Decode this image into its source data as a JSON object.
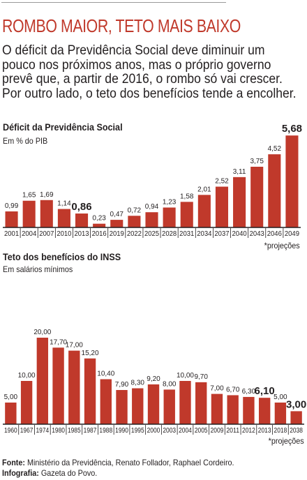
{
  "headline": "ROMBO MAIOR, TETO MAIS BAIXO",
  "intro": "O déficit da Previdência Social deve diminuir um pouco nos próximos anos, mas o próprio governo prevê que, a partir de 2016, o rombo só vai crescer. Por outro lado, o teto dos benefícios tende a encolher.",
  "colors": {
    "bar": "#c0392b",
    "headline": "#c0392b",
    "axis": "#231f20"
  },
  "chart_data": [
    {
      "type": "bar",
      "title": "Déficit da Previdência Social",
      "subtitle": "Em % do PIB",
      "note": "*projeções",
      "categories": [
        "2001",
        "2004",
        "2007",
        "2010",
        "2013",
        "2016",
        "2019",
        "2022",
        "2025",
        "2028",
        "2031",
        "2034",
        "2037",
        "2040",
        "2043",
        "2046",
        "2049"
      ],
      "values": [
        0.99,
        1.65,
        1.69,
        1.14,
        0.86,
        0.23,
        0.47,
        0.72,
        0.94,
        1.23,
        1.58,
        2.01,
        2.52,
        3.11,
        3.75,
        4.52,
        5.68
      ],
      "labels": [
        "0,99",
        "1,65",
        "1,69",
        "1,14",
        "0,86",
        "0,23",
        "0,47",
        "0,72",
        "0,94",
        "1,23",
        "1,58",
        "2,01",
        "2,52",
        "3,11",
        "3,75",
        "4,52",
        "5,68"
      ],
      "highlighted": [
        "2013",
        "2049"
      ]
    },
    {
      "type": "bar",
      "title": "Teto dos benefícios do INSS",
      "subtitle": "Em salários mínimos",
      "note": "*projeções",
      "categories": [
        "1960",
        "1967",
        "1974",
        "1980",
        "1985",
        "1987",
        "1988",
        "1990",
        "1995",
        "2000",
        "2003",
        "2004",
        "2005",
        "2009",
        "2011",
        "2012",
        "2013",
        "2018",
        "2038"
      ],
      "values": [
        5.0,
        10.0,
        20.0,
        17.7,
        17.0,
        15.2,
        10.4,
        7.9,
        8.3,
        9.2,
        8.0,
        10.0,
        9.7,
        7.0,
        6.7,
        6.3,
        6.1,
        5.0,
        3.0
      ],
      "labels": [
        "5,00",
        "10,00",
        "20,00",
        "17,70",
        "17,00",
        "15,20",
        "10,40",
        "7,90",
        "8,30",
        "9,20",
        "8,00",
        "10,00",
        "9,70",
        "7,00",
        "6,70",
        "6,30",
        "6,10",
        "5,00",
        "3,00"
      ],
      "highlighted": [
        "2013",
        "2038"
      ]
    }
  ],
  "footer": {
    "source_label": "Fonte:",
    "source_text": "Ministério da Previdência, Renato Follador, Raphael Cordeiro.",
    "credit_label": "Infografia:",
    "credit_text": "Gazeta do Povo."
  }
}
